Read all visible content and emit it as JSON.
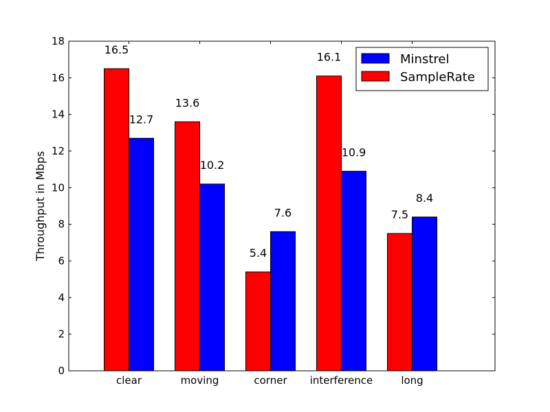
{
  "chart_data": {
    "type": "bar",
    "categories": [
      "clear",
      "moving",
      "corner",
      "interference",
      "long"
    ],
    "series": [
      {
        "name": "SampleRate",
        "color": "#ff0000",
        "values": [
          16.5,
          13.6,
          5.4,
          16.1,
          7.5
        ],
        "labels": [
          "16.5",
          "13.6",
          "5.4",
          "16.1",
          "7.5"
        ]
      },
      {
        "name": "Minstrel",
        "color": "#0000ff",
        "values": [
          12.7,
          10.2,
          7.6,
          10.9,
          8.4
        ],
        "labels": [
          "12.7",
          "10.2",
          "7.6",
          "10.9",
          "8.4"
        ]
      }
    ],
    "legend_order": [
      "Minstrel",
      "SampleRate"
    ],
    "legend_position": "top-right",
    "xlabel": "",
    "ylabel": "Throughput in Mbps",
    "ylim": [
      0,
      18
    ],
    "yticks": [
      0,
      2,
      4,
      6,
      8,
      10,
      12,
      14,
      16,
      18
    ],
    "grid": false
  }
}
